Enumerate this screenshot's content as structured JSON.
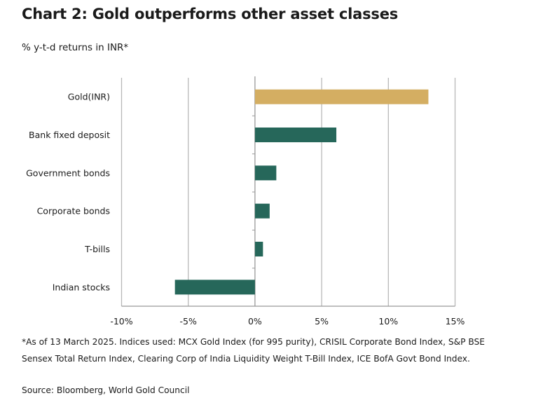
{
  "title": "Chart 2: Gold outperforms other asset classes",
  "subtitle": "% y-t-d returns in INR*",
  "footnote": "*As of 13 March 2025. Indices used: MCX Gold Index (for 995 purity), CRISIL Corporate Bond Index, S&P BSE Sensex Total Return Index, Clearing Corp of India Liquidity Weight T-Bill Index, ICE BofA Govt Bond Index.",
  "source": "Source: Bloomberg, World Gold Council",
  "colors": {
    "gold": "#d4ae62",
    "green": "#26675a",
    "grid": "#b8b8b8"
  },
  "chart_data": {
    "type": "bar",
    "orientation": "horizontal",
    "title": "Chart 2: Gold outperforms other asset classes",
    "ylabel": "% y-t-d returns in INR*",
    "categories": [
      "Gold(INR)",
      "Bank fixed deposit",
      "Government bonds",
      "Corporate bonds",
      "T-bills",
      "Indian stocks"
    ],
    "values": [
      13.0,
      6.1,
      1.6,
      1.1,
      0.6,
      -6.0
    ],
    "highlight": [
      true,
      false,
      false,
      false,
      false,
      false
    ],
    "xlim": [
      -10,
      15
    ],
    "xticks": [
      -10,
      -5,
      0,
      5,
      10,
      15
    ],
    "xtick_labels": [
      "-10%",
      "-5%",
      "0%",
      "5%",
      "10%",
      "15%"
    ],
    "grid": true
  }
}
